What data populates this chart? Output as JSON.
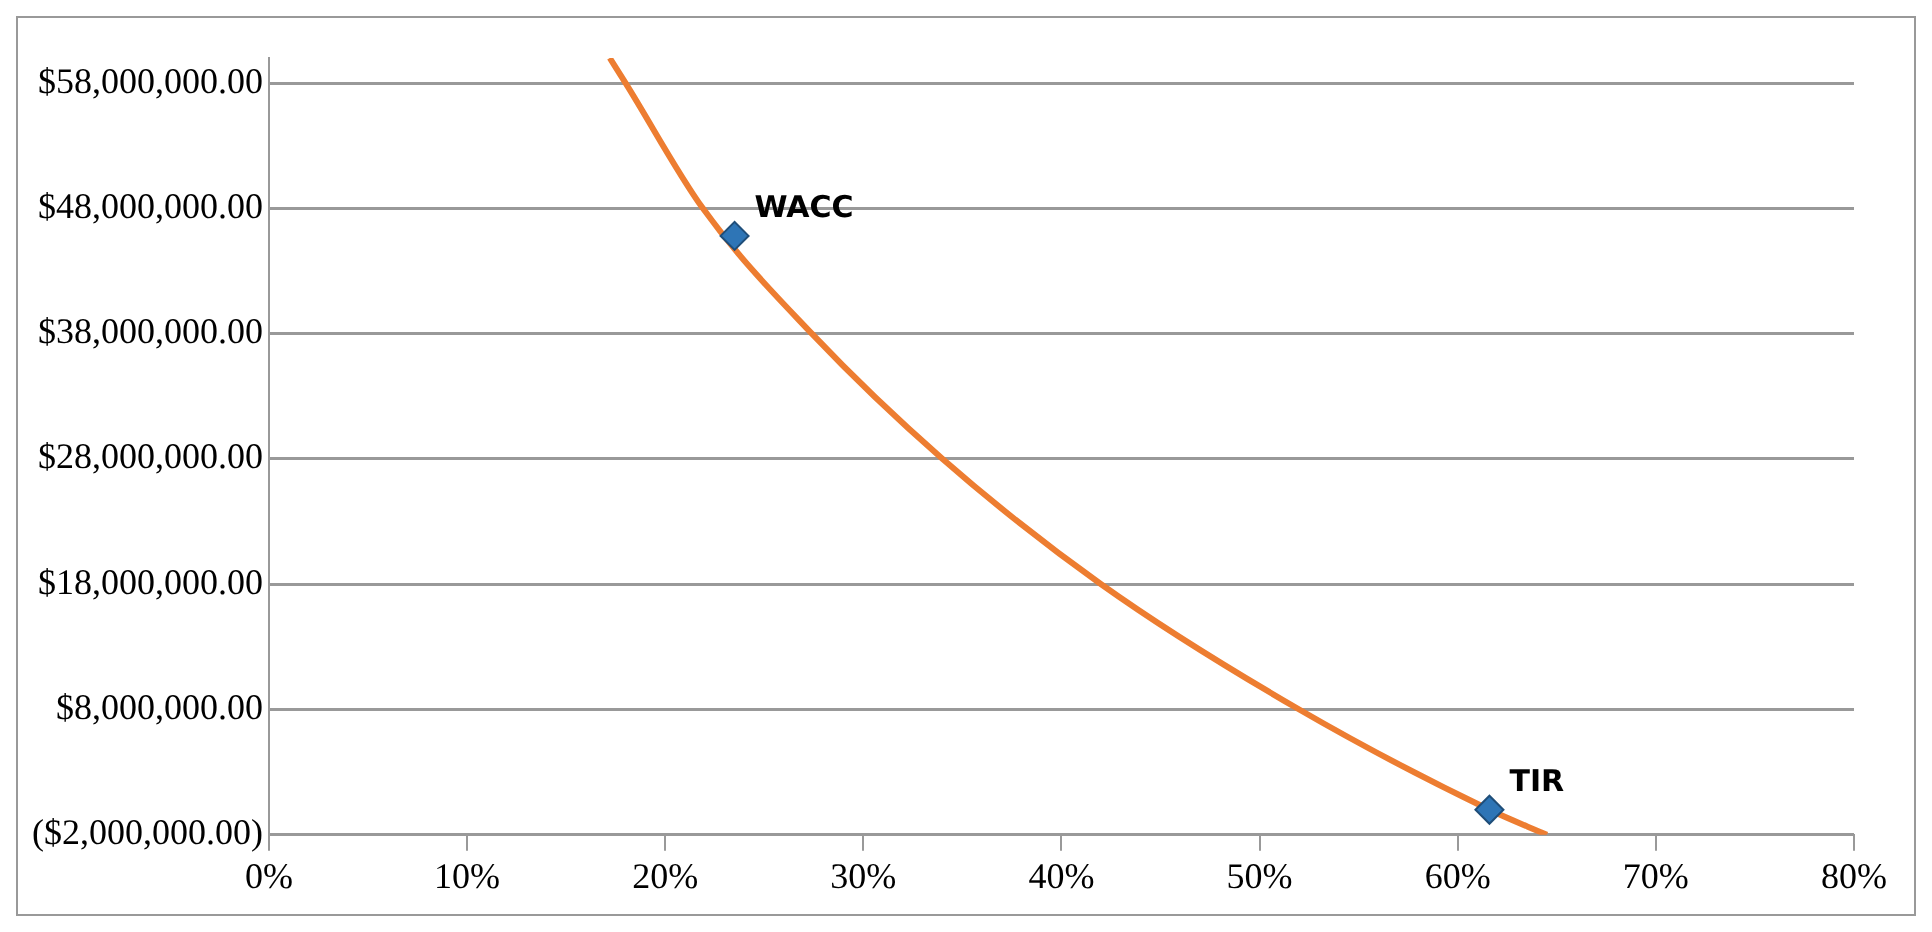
{
  "chart_data": {
    "type": "line",
    "xlim": [
      0,
      80
    ],
    "xticks": [
      {
        "value": 0,
        "label": "0%"
      },
      {
        "value": 10,
        "label": "10%"
      },
      {
        "value": 20,
        "label": "20%"
      },
      {
        "value": 30,
        "label": "30%"
      },
      {
        "value": 40,
        "label": "40%"
      },
      {
        "value": 50,
        "label": "50%"
      },
      {
        "value": 60,
        "label": "60%"
      },
      {
        "value": 70,
        "label": "70%"
      },
      {
        "value": 80,
        "label": "80%"
      }
    ],
    "ylim": [
      -2000000,
      60000000
    ],
    "yticks": [
      {
        "value": -2000000,
        "label": "($2,000,000.00)"
      },
      {
        "value": 8000000,
        "label": "$8,000,000.00"
      },
      {
        "value": 18000000,
        "label": "$18,000,000.00"
      },
      {
        "value": 28000000,
        "label": "$28,000,000.00"
      },
      {
        "value": 38000000,
        "label": "$38,000,000.00"
      },
      {
        "value": 48000000,
        "label": "$48,000,000.00"
      },
      {
        "value": 58000000,
        "label": "$58,000,000.00"
      }
    ],
    "grid": "y",
    "series": [
      {
        "color": "#ed7d31",
        "marker": "none",
        "x": [
          17.2,
          18,
          21.9,
          27.4,
          34,
          42,
          52,
          61.6,
          64.5
        ],
        "values": [
          60000000,
          58000000,
          48000000,
          38000000,
          28000000,
          18000000,
          8000000,
          0,
          -2000000
        ]
      },
      {
        "type": "scatter",
        "color": "#2e75b6",
        "marker": "diamond",
        "x": [
          23.5,
          61.6
        ],
        "values": [
          45800000,
          0
        ]
      }
    ],
    "annotations": [
      {
        "text": "WACC",
        "x": 23.5,
        "y": 45800000
      },
      {
        "text": "TIR",
        "x": 61.6,
        "y": 0
      }
    ]
  }
}
